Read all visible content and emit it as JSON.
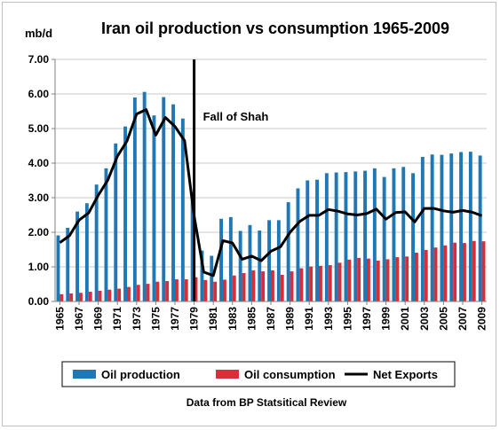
{
  "chart_data": {
    "type": "bar",
    "title": "Iran oil production  vs consumption  1965-2009",
    "ylabel": "mb/d",
    "xlabel": "",
    "ylim": [
      0,
      7
    ],
    "yticks": [
      "0.00",
      "1.00",
      "2.00",
      "3.00",
      "4.00",
      "5.00",
      "6.00",
      "7.00"
    ],
    "ytick_values": [
      0,
      1,
      2,
      3,
      4,
      5,
      6,
      7
    ],
    "grid": "horizontal",
    "legend_placement": "bottom",
    "x": [
      1965,
      1966,
      1967,
      1968,
      1969,
      1970,
      1971,
      1972,
      1973,
      1974,
      1975,
      1976,
      1977,
      1978,
      1979,
      1980,
      1981,
      1982,
      1983,
      1984,
      1985,
      1986,
      1987,
      1988,
      1989,
      1990,
      1991,
      1992,
      1993,
      1994,
      1995,
      1996,
      1997,
      1998,
      1999,
      2000,
      2001,
      2002,
      2003,
      2004,
      2005,
      2006,
      2007,
      2008,
      2009
    ],
    "xtick_labels": [
      "1965",
      "1967",
      "1969",
      "1971",
      "1973",
      "1975",
      "1977",
      "1979",
      "1981",
      "1983",
      "1985",
      "1987",
      "1989",
      "1991",
      "1993",
      "1995",
      "1997",
      "1999",
      "2001",
      "2003",
      "2005",
      "2007",
      "2009"
    ],
    "series": [
      {
        "name": "Oil production",
        "type": "bar",
        "color": "#1f77b4",
        "values": [
          1.91,
          2.13,
          2.6,
          2.84,
          3.38,
          3.85,
          4.57,
          5.06,
          5.9,
          6.06,
          5.38,
          5.91,
          5.7,
          5.29,
          3.17,
          1.47,
          1.32,
          2.39,
          2.44,
          2.04,
          2.21,
          2.05,
          2.35,
          2.35,
          2.87,
          3.27,
          3.5,
          3.52,
          3.71,
          3.73,
          3.74,
          3.76,
          3.78,
          3.85,
          3.6,
          3.85,
          3.89,
          3.71,
          4.18,
          4.25,
          4.24,
          4.28,
          4.32,
          4.33,
          4.22
        ]
      },
      {
        "name": "Oil consumption",
        "type": "bar",
        "color": "#d62f3a",
        "values": [
          0.21,
          0.23,
          0.25,
          0.28,
          0.31,
          0.34,
          0.37,
          0.42,
          0.48,
          0.51,
          0.57,
          0.59,
          0.64,
          0.64,
          0.7,
          0.62,
          0.57,
          0.63,
          0.75,
          0.82,
          0.9,
          0.87,
          0.9,
          0.77,
          0.87,
          0.96,
          1.01,
          1.03,
          1.05,
          1.12,
          1.21,
          1.26,
          1.24,
          1.18,
          1.22,
          1.28,
          1.3,
          1.41,
          1.49,
          1.56,
          1.62,
          1.7,
          1.69,
          1.75,
          1.74
        ]
      },
      {
        "name": "Net Exports",
        "type": "line",
        "color": "#000000",
        "values": [
          1.7,
          1.9,
          2.35,
          2.56,
          3.07,
          3.51,
          4.2,
          4.64,
          5.42,
          5.55,
          4.81,
          5.32,
          5.06,
          4.65,
          2.47,
          0.85,
          0.75,
          1.76,
          1.69,
          1.22,
          1.31,
          1.18,
          1.45,
          1.58,
          2.0,
          2.31,
          2.49,
          2.49,
          2.66,
          2.61,
          2.53,
          2.5,
          2.54,
          2.67,
          2.38,
          2.57,
          2.59,
          2.3,
          2.69,
          2.69,
          2.62,
          2.58,
          2.63,
          2.58,
          2.48
        ]
      }
    ],
    "annotations": [
      {
        "text": "Fall of Shah",
        "x": 1979
      }
    ],
    "source_note": "Data from BP Statsitical Review"
  }
}
